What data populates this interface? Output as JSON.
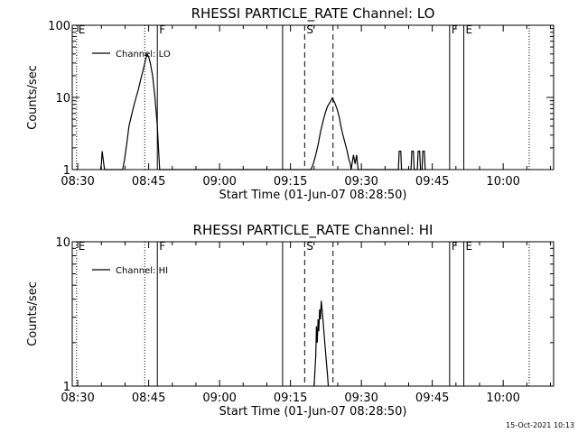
{
  "footer": {
    "date_stamp": "15-Oct-2021 10:13"
  },
  "chart_data": [
    {
      "type": "line",
      "title": "RHESSI PARTICLE_RATE Channel: LO",
      "xlabel": "Start Time (01-Jun-07 08:28:50)",
      "ylabel": "Counts/sec",
      "yscale": "log",
      "ylim": [
        1,
        100
      ],
      "yticks": [
        {
          "v": 1,
          "label": "1"
        },
        {
          "v": 10,
          "label": "10"
        },
        {
          "v": 100,
          "label": "100"
        }
      ],
      "xlim": [
        "08:28:50",
        "10:10:40"
      ],
      "xticks": [
        "08:30",
        "08:45",
        "09:00",
        "09:15",
        "09:30",
        "09:45",
        "10:00"
      ],
      "grid": false,
      "legend_position": "top-left",
      "series": [
        {
          "name": "Channel: LO",
          "x": [
            "08:34:50",
            "08:35:00",
            "08:35:10",
            "08:35:30",
            "08:35:40",
            "08:35:50",
            "08:39:30",
            "08:39:50",
            "08:40:20",
            "08:40:50",
            "08:41:20",
            "08:41:50",
            "08:42:20",
            "08:42:50",
            "08:43:20",
            "08:43:50",
            "08:44:20",
            "08:44:40",
            "08:44:50",
            "08:45:00",
            "08:45:20",
            "08:45:50",
            "08:46:20",
            "08:46:50",
            "08:47:10",
            "08:47:20",
            "09:19:20",
            "09:19:50",
            "09:20:20",
            "09:20:50",
            "09:21:20",
            "09:21:50",
            "09:22:20",
            "09:22:50",
            "09:23:20",
            "09:23:50",
            "09:24:20",
            "09:24:50",
            "09:25:20",
            "09:25:40",
            "09:26:00",
            "09:27:00",
            "09:27:20",
            "09:27:40",
            "09:27:50",
            "09:28:20",
            "09:28:40",
            "09:29:00",
            "09:29:10",
            "09:29:20",
            "09:30:00",
            "09:37:50",
            "09:38:00",
            "09:38:20",
            "09:38:30",
            "09:40:30",
            "09:40:40",
            "09:41:00",
            "09:41:10",
            "09:41:50",
            "09:42:00",
            "09:42:20",
            "09:42:30",
            "09:42:50",
            "09:43:00",
            "09:43:20",
            "09:43:30"
          ],
          "y": [
            1,
            1.2,
            1.8,
            1.2,
            1,
            1,
            1,
            1.3,
            2.2,
            4,
            5.5,
            7.5,
            10,
            13,
            18,
            24,
            33,
            40,
            38,
            37,
            30,
            20,
            10,
            4,
            1.5,
            1,
            1,
            1.2,
            1.6,
            2.2,
            3.3,
            4.5,
            6,
            7.5,
            8.5,
            9.8,
            8.5,
            7,
            5.3,
            4,
            3.2,
            1.8,
            1.4,
            1.2,
            1,
            1.6,
            1.2,
            1.6,
            1.2,
            1,
            1,
            1,
            1.8,
            1.8,
            1,
            1,
            1.8,
            1.8,
            1,
            1,
            1.8,
            1.8,
            1,
            1,
            1.8,
            1.8,
            1
          ]
        }
      ],
      "markers": [
        {
          "t": "08:29:45",
          "label": "E",
          "style": "dotted"
        },
        {
          "t": "08:44:10",
          "label": "",
          "style": "dotted"
        },
        {
          "t": "08:46:50",
          "label": "F",
          "style": "solid"
        },
        {
          "t": "09:13:20",
          "label": "",
          "style": "solid"
        },
        {
          "t": "09:18:00",
          "label": "S",
          "style": "dashed"
        },
        {
          "t": "09:24:00",
          "label": "",
          "style": "dashed"
        },
        {
          "t": "09:48:40",
          "label": "F",
          "style": "solid"
        },
        {
          "t": "09:51:40",
          "label": "E",
          "style": "solid"
        },
        {
          "t": "10:05:30",
          "label": "",
          "style": "dotted"
        }
      ]
    },
    {
      "type": "line",
      "title": "RHESSI PARTICLE_RATE Channel: HI",
      "xlabel": "Start Time (01-Jun-07 08:28:50)",
      "ylabel": "Counts/sec",
      "yscale": "log",
      "ylim": [
        1,
        10
      ],
      "yticks": [
        {
          "v": 1,
          "label": "1"
        },
        {
          "v": 10,
          "label": "10"
        }
      ],
      "xlim": [
        "08:28:50",
        "10:10:40"
      ],
      "xticks": [
        "08:30",
        "08:45",
        "09:00",
        "09:15",
        "09:30",
        "09:45",
        "10:00"
      ],
      "grid": false,
      "legend_position": "top-left",
      "series": [
        {
          "name": "Channel: HI",
          "x": [
            "09:20:00",
            "09:20:20",
            "09:20:30",
            "09:20:40",
            "09:20:50",
            "09:21:00",
            "09:21:10",
            "09:21:20",
            "09:21:30",
            "09:21:50",
            "09:22:10",
            "09:22:30",
            "09:22:50",
            "09:23:00"
          ],
          "y": [
            1,
            1.6,
            2.6,
            2.0,
            2.9,
            2.4,
            3.4,
            2.9,
            3.9,
            3.0,
            2.2,
            1.6,
            1.2,
            1
          ]
        }
      ],
      "markers": [
        {
          "t": "08:29:45",
          "label": "E",
          "style": "dotted"
        },
        {
          "t": "08:44:10",
          "label": "",
          "style": "dotted"
        },
        {
          "t": "08:46:50",
          "label": "F",
          "style": "solid"
        },
        {
          "t": "09:13:20",
          "label": "",
          "style": "solid"
        },
        {
          "t": "09:18:00",
          "label": "S",
          "style": "dashed"
        },
        {
          "t": "09:24:00",
          "label": "",
          "style": "dashed"
        },
        {
          "t": "09:48:40",
          "label": "F",
          "style": "solid"
        },
        {
          "t": "09:51:40",
          "label": "E",
          "style": "solid"
        },
        {
          "t": "10:05:30",
          "label": "",
          "style": "dotted"
        }
      ]
    }
  ]
}
